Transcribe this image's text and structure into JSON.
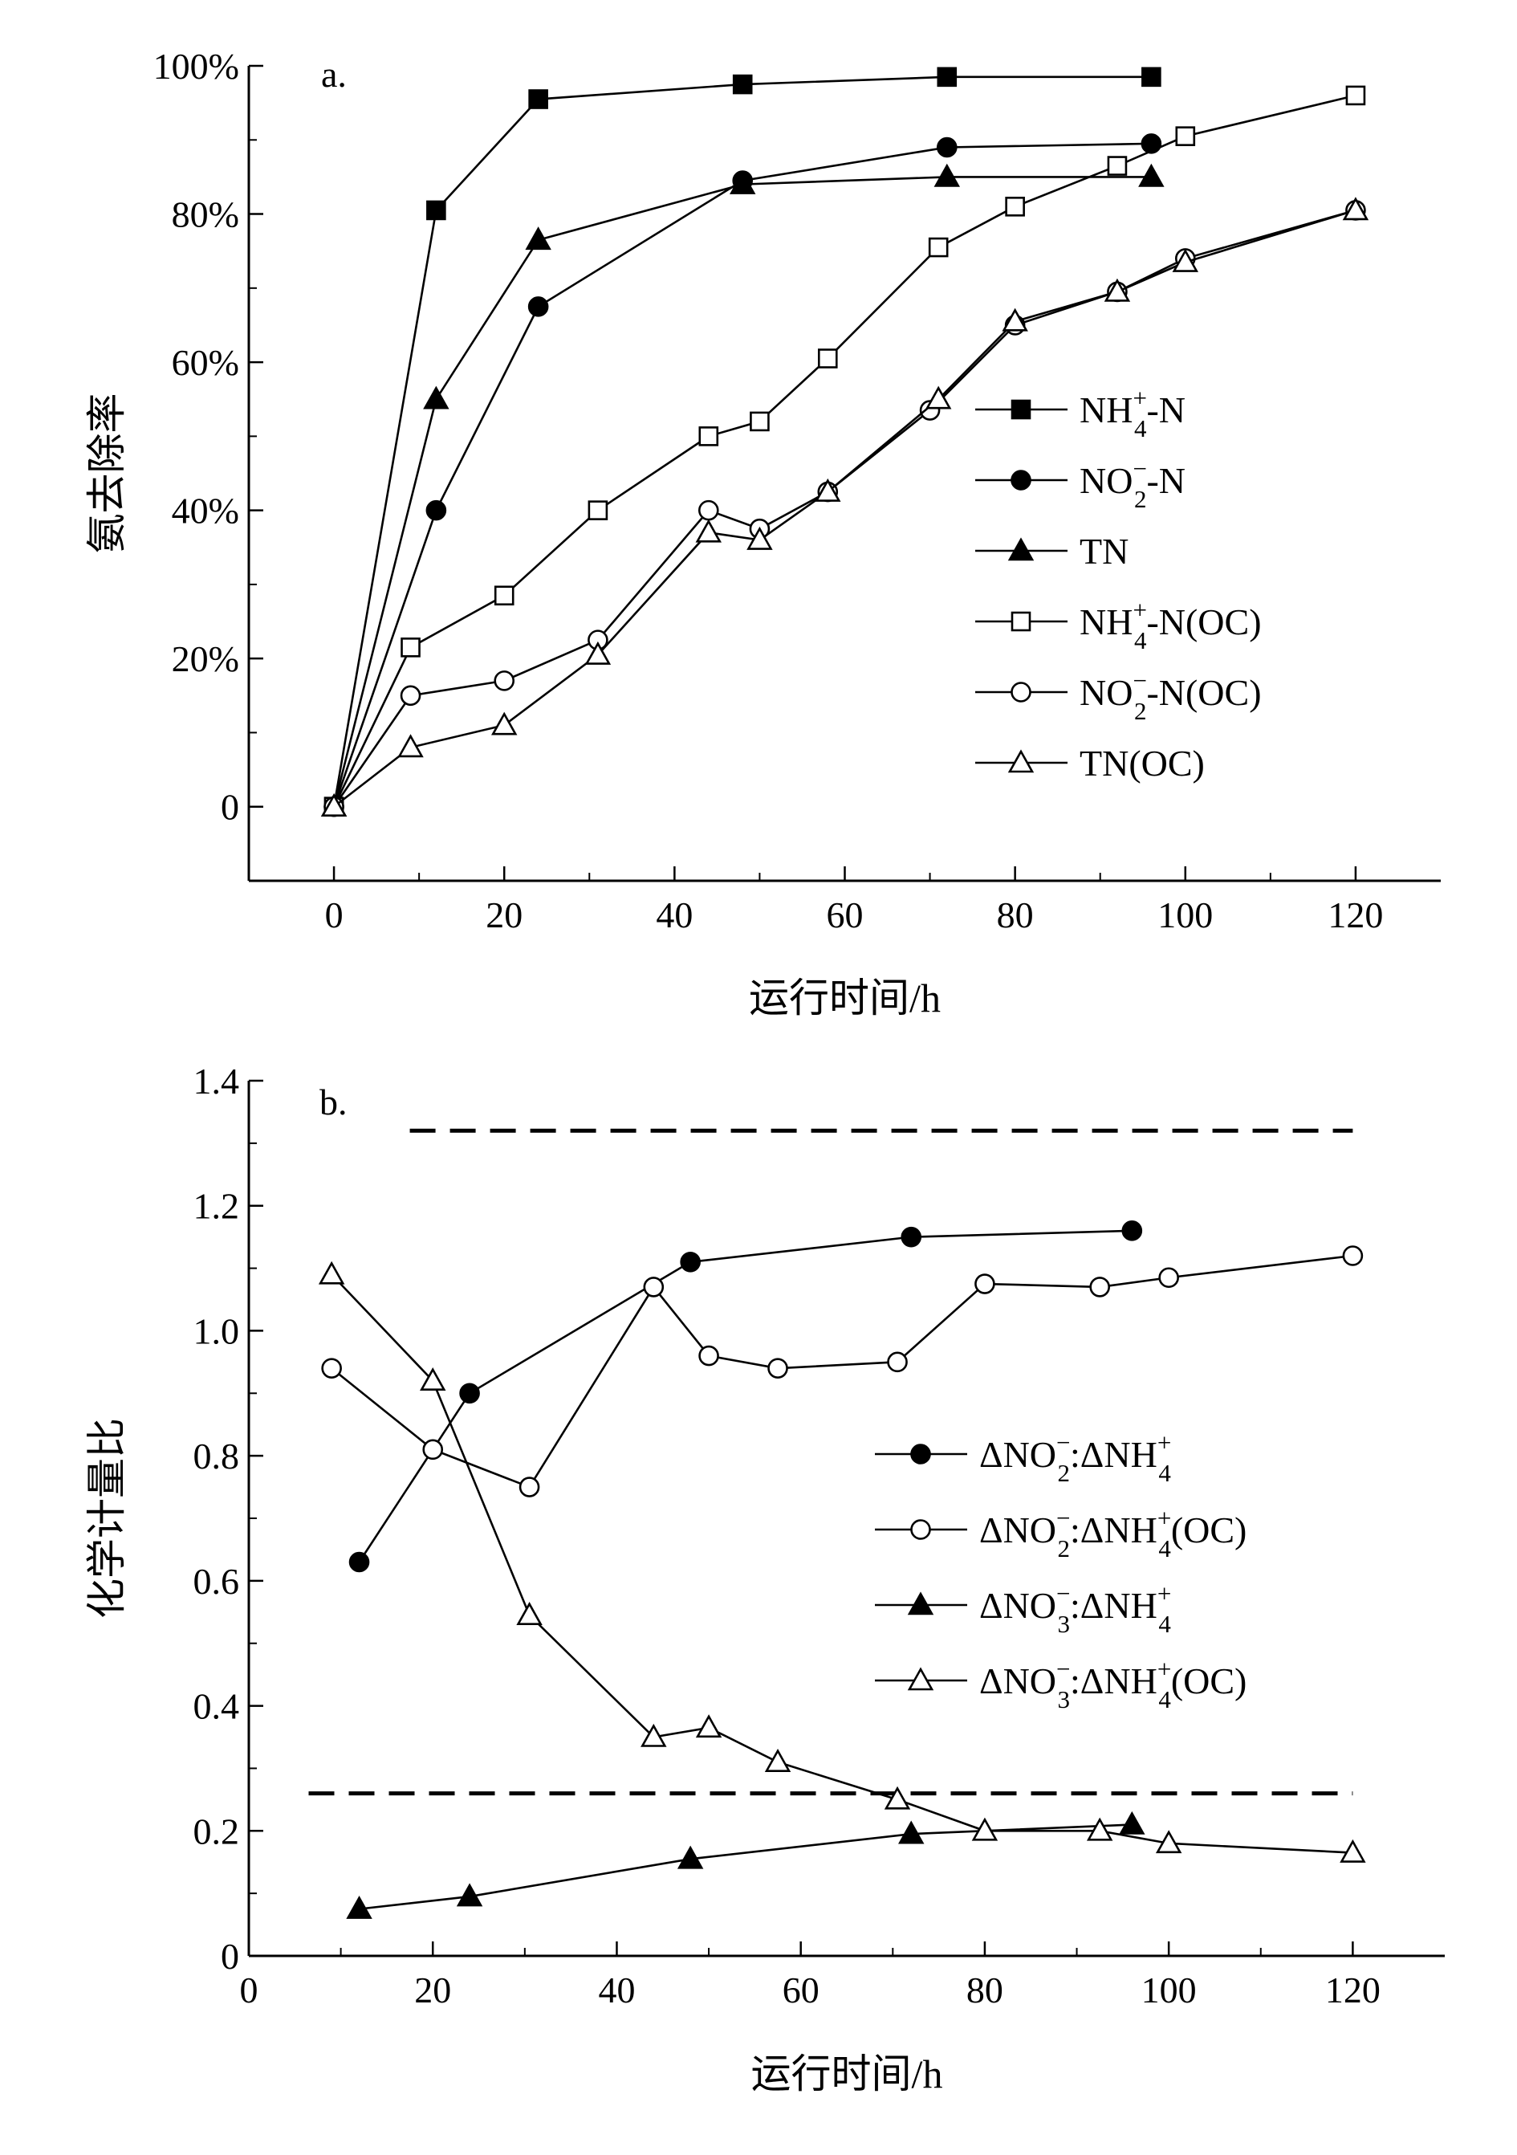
{
  "chart_data": [
    {
      "type": "line",
      "panel_label": "a.",
      "xlabel": "运行时间/h",
      "ylabel": "氨去除率",
      "xlim": [
        -10,
        130
      ],
      "ylim": [
        -10,
        100
      ],
      "x_ticks": [
        0,
        20,
        40,
        60,
        80,
        100,
        120
      ],
      "x_tick_labels": [
        "0",
        "20",
        "40",
        "60",
        "80",
        "100",
        "120"
      ],
      "y_ticks": [
        0,
        20,
        40,
        60,
        80,
        100
      ],
      "y_tick_labels": [
        "0",
        "20%",
        "40%",
        "60%",
        "80%",
        "100%"
      ],
      "legend_position": "right",
      "series": [
        {
          "name": "NH4+-N",
          "label_parts": [
            "NH",
            "+",
            "4",
            "-N"
          ],
          "marker": "square",
          "fill": "#000000",
          "x": [
            0,
            12,
            24,
            48,
            72,
            96
          ],
          "y": [
            0,
            80.5,
            95.5,
            97.5,
            98.5,
            98.5
          ]
        },
        {
          "name": "NO2−-N",
          "label_parts": [
            "NO",
            "−",
            "2",
            "-N"
          ],
          "marker": "circle",
          "fill": "#000000",
          "x": [
            0,
            12,
            24,
            48,
            72,
            96
          ],
          "y": [
            0,
            40,
            67.5,
            84.5,
            89,
            89.5
          ]
        },
        {
          "name": "TN",
          "label_parts": [
            "TN",
            "",
            "",
            ""
          ],
          "marker": "triangle",
          "fill": "#000000",
          "x": [
            0,
            12,
            24,
            48,
            72,
            96
          ],
          "y": [
            0,
            55,
            76.5,
            84,
            85,
            85
          ]
        },
        {
          "name": "NH4+-N(OC)",
          "label_parts": [
            "NH",
            "+",
            "4",
            "-N(OC)"
          ],
          "marker": "square",
          "fill": "#ffffff",
          "x": [
            0,
            9,
            20,
            31,
            44,
            50,
            58,
            71,
            80,
            92,
            100,
            120
          ],
          "y": [
            0,
            21.5,
            28.5,
            40,
            50,
            52,
            60.5,
            75.5,
            81,
            86.5,
            90.5,
            96
          ]
        },
        {
          "name": "NO2−-N(OC)",
          "label_parts": [
            "NO",
            "−",
            "2",
            "-N(OC)"
          ],
          "marker": "circle",
          "fill": "#ffffff",
          "x": [
            0,
            9,
            20,
            31,
            44,
            50,
            58,
            70,
            80,
            92,
            100,
            120
          ],
          "y": [
            0,
            15,
            17,
            22.5,
            40,
            37.5,
            42.5,
            53.5,
            65,
            69.5,
            74,
            80.5
          ]
        },
        {
          "name": "TN(OC)",
          "label_parts": [
            "TN(OC)",
            "",
            "",
            ""
          ],
          "marker": "triangle",
          "fill": "#ffffff",
          "x": [
            0,
            9,
            20,
            31,
            44,
            50,
            58,
            71,
            80,
            92,
            100,
            120
          ],
          "y": [
            0,
            8,
            11,
            20.5,
            37,
            36,
            42.5,
            55,
            65.5,
            69.5,
            73.5,
            80.5
          ]
        }
      ]
    },
    {
      "type": "line",
      "panel_label": "b.",
      "xlabel": "运行时间/h",
      "ylabel": "化学计量比",
      "xlim": [
        0,
        130
      ],
      "ylim": [
        0,
        1.4
      ],
      "x_ticks": [
        0,
        20,
        40,
        60,
        80,
        100,
        120
      ],
      "x_tick_labels": [
        "0",
        "20",
        "40",
        "60",
        "80",
        "100",
        "120"
      ],
      "y_ticks": [
        0,
        0.2,
        0.4,
        0.6,
        0.8,
        1.0,
        1.2,
        1.4
      ],
      "y_tick_labels": [
        "0",
        "0.2",
        "0.4",
        "0.6",
        "0.8",
        "1.0",
        "1.2",
        "1.4"
      ],
      "legend_position": "right",
      "reference_lines": [
        {
          "y": 1.32,
          "x_range": [
            17.5,
            120
          ],
          "style": "dashed"
        },
        {
          "y": 0.26,
          "x_range": [
            6.5,
            120
          ],
          "style": "dashed"
        }
      ],
      "series": [
        {
          "name": "ΔNO2−:ΔNH4+",
          "label_parts": [
            "ΔNO",
            "−",
            "2",
            ":ΔNH",
            "+",
            "4",
            ""
          ],
          "marker": "circle",
          "fill": "#000000",
          "x": [
            12,
            24,
            48,
            72,
            96
          ],
          "y": [
            0.63,
            0.9,
            1.11,
            1.15,
            1.16
          ]
        },
        {
          "name": "ΔNO2−:ΔNH4+(OC)",
          "label_parts": [
            "ΔNO",
            "−",
            "2",
            ":ΔNH",
            "+",
            "4",
            "(OC)"
          ],
          "marker": "circle",
          "fill": "#ffffff",
          "x": [
            9,
            20,
            30.5,
            44,
            50,
            57.5,
            70.5,
            80,
            92.5,
            100,
            120
          ],
          "y": [
            0.94,
            0.81,
            0.75,
            1.07,
            0.96,
            0.94,
            0.95,
            1.075,
            1.07,
            1.085,
            1.12
          ]
        },
        {
          "name": "ΔNO3−:ΔNH4+",
          "label_parts": [
            "ΔNO",
            "−",
            "3",
            ":ΔNH",
            "+",
            "4",
            ""
          ],
          "marker": "triangle",
          "fill": "#000000",
          "x": [
            12,
            24,
            48,
            72,
            96
          ],
          "y": [
            0.075,
            0.095,
            0.155,
            0.195,
            0.21
          ]
        },
        {
          "name": "ΔNO3−:ΔNH4+(OC)",
          "label_parts": [
            "ΔNO",
            "−",
            "3",
            ":ΔNH",
            "+",
            "4",
            "(OC)"
          ],
          "marker": "triangle",
          "fill": "#ffffff",
          "x": [
            9,
            20,
            30.5,
            44,
            50,
            57.5,
            70.5,
            80,
            92.5,
            100,
            120
          ],
          "y": [
            1.09,
            0.92,
            0.545,
            0.35,
            0.365,
            0.31,
            0.25,
            0.2,
            0.2,
            0.18,
            0.165
          ]
        }
      ]
    }
  ]
}
